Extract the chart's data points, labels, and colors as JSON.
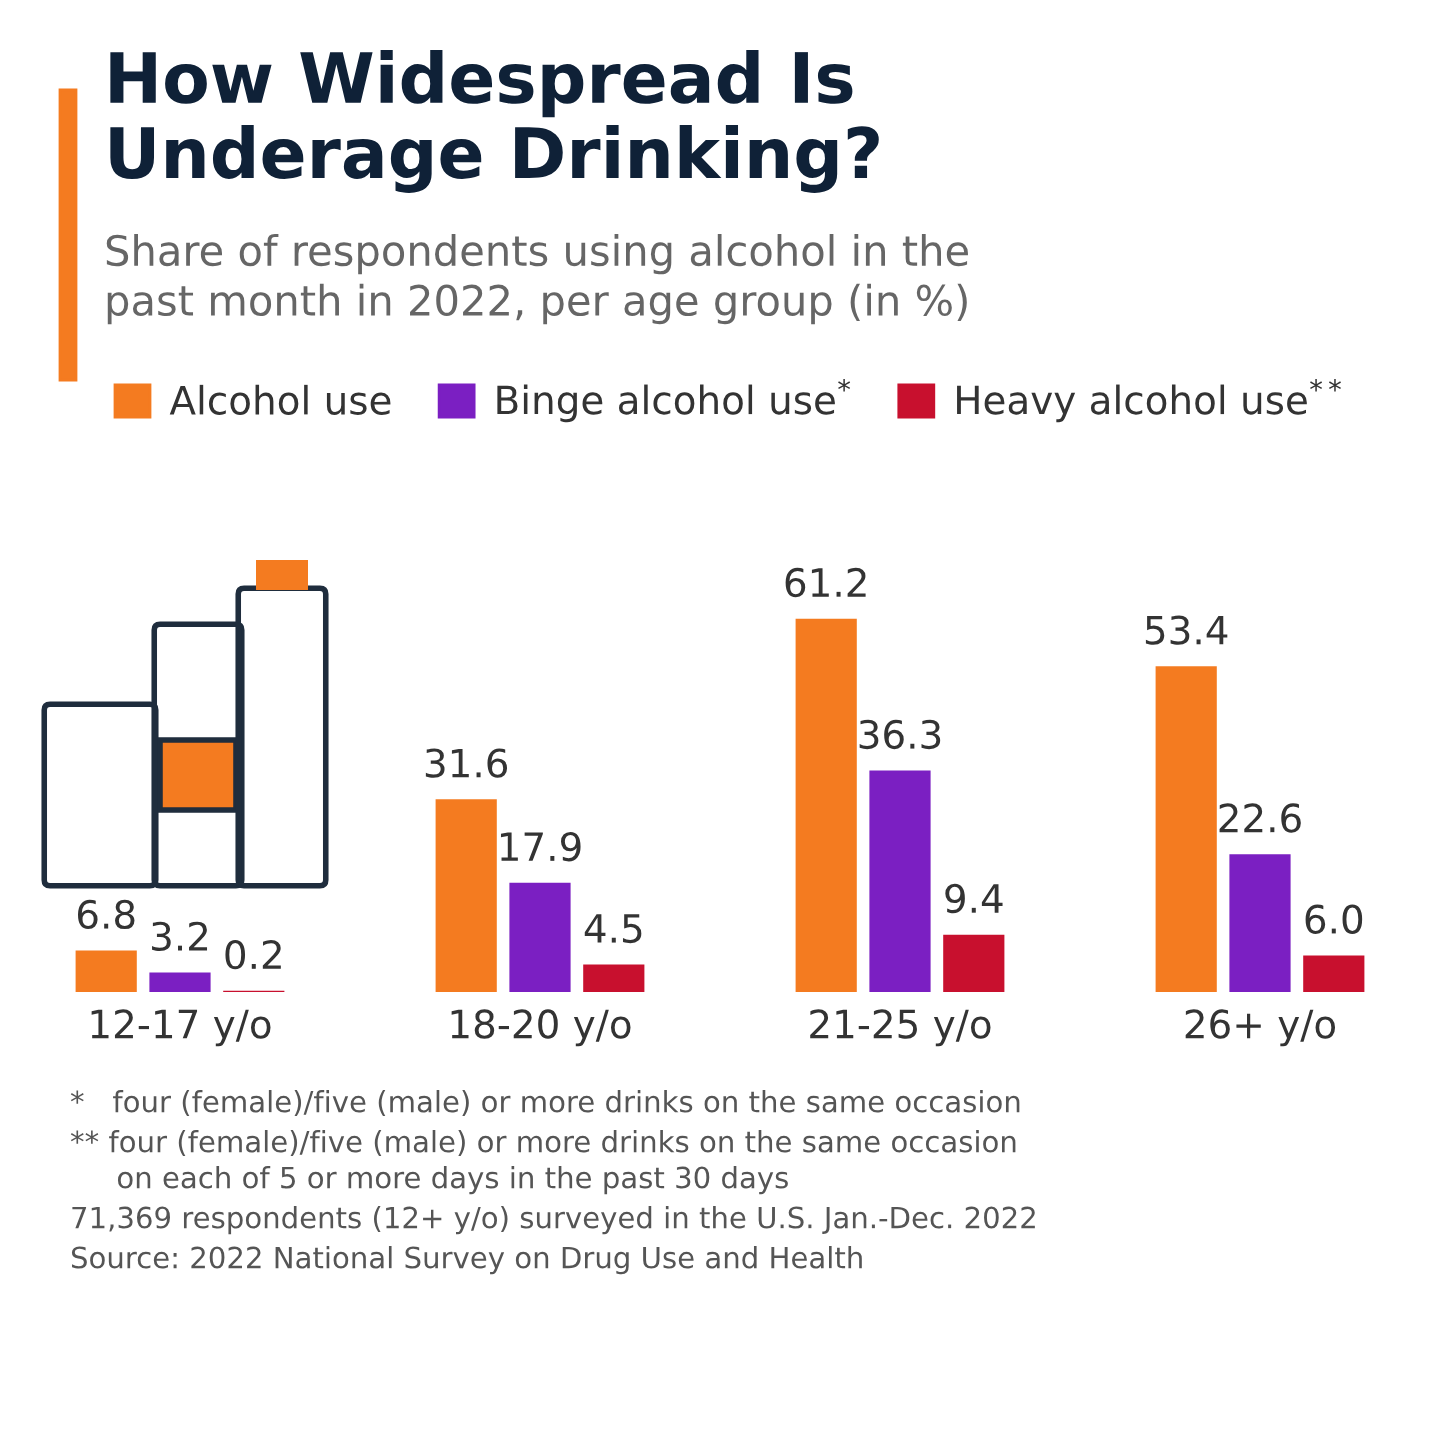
{
  "chart_data": {
    "type": "bar",
    "title": "How Widespread Is\nUnderage Drinking?",
    "subtitle": "Share of respondents using alcohol in the\npast month in 2022, per age group (in %)",
    "categories": [
      "12-17 y/o",
      "18-20 y/o",
      "21-25 y/o",
      "26+ y/o"
    ],
    "series": [
      {
        "name": "Alcohol use",
        "color": "#f47b20",
        "values": [
          6.8,
          31.6,
          61.2,
          53.4
        ]
      },
      {
        "name": "Binge alcohol use$^{*}$",
        "color": "#7b1fc2",
        "values": [
          3.2,
          17.9,
          36.3,
          22.6
        ]
      },
      {
        "name": "Heavy alcohol use$^{**}$",
        "color": "#c8102e",
        "values": [
          0.2,
          4.5,
          9.4,
          6.0
        ],
        "value_labels": [
          "0.2",
          "4.5",
          "9.4",
          "6.0"
        ]
      }
    ],
    "data_labels": true,
    "legend": "top left",
    "grid": false,
    "tick_labels": "x",
    "annotations": [
      "*   four (female)/five (male) or more drinks on the same occasion",
      "** four (female)/five (male) or more drinks on the same occasion\n     on each of 5 or more days in the past 30 days",
      "71,369 respondents (12+ y/o) surveyed in the U.S. Jan.-Dec. 2022",
      "Source: 2022 National Survey on Drug Use and Health"
    ]
  }
}
